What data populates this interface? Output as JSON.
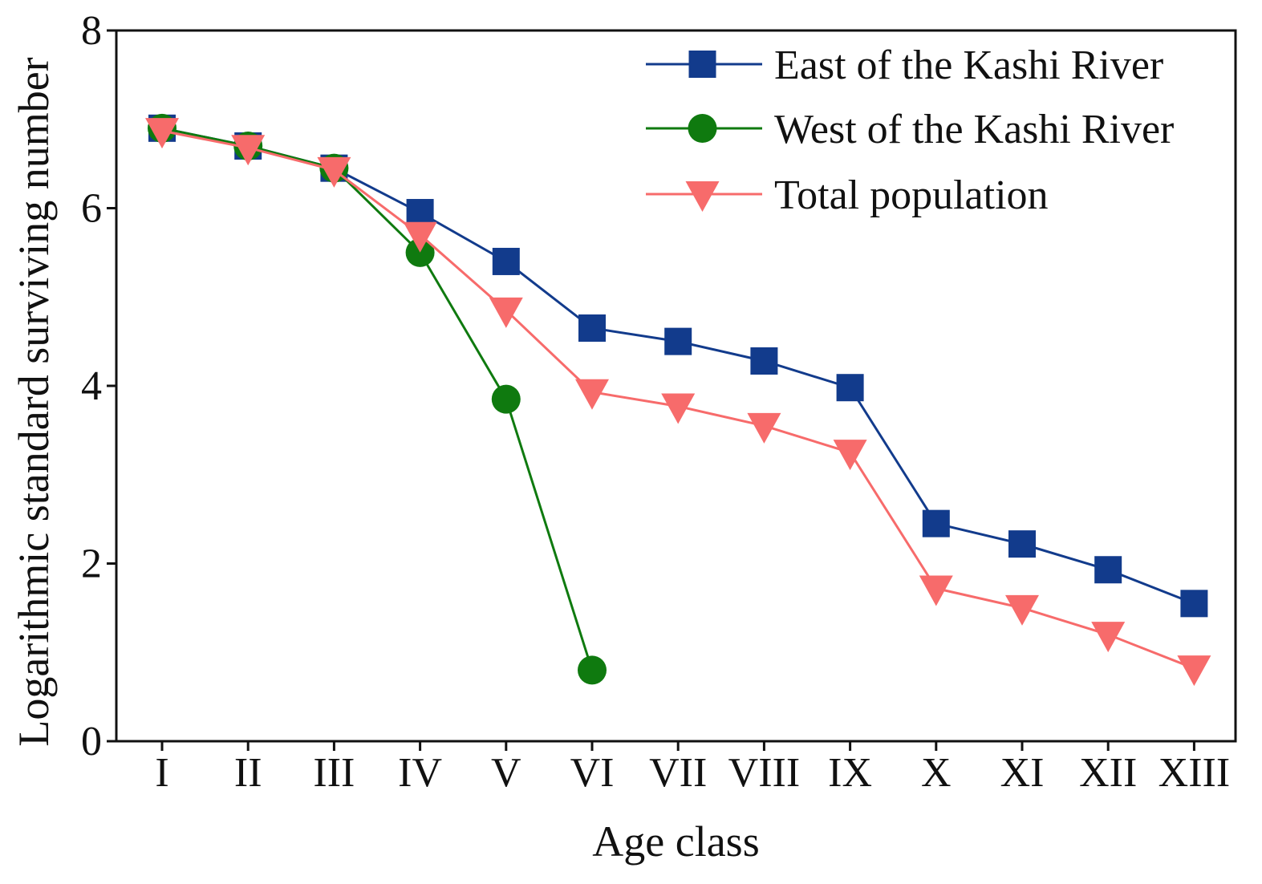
{
  "chart_data": {
    "type": "line",
    "title": "",
    "xlabel": "Age class",
    "ylabel": "Logarithmic standard surviving number",
    "categories": [
      "I",
      "II",
      "III",
      "IV",
      "V",
      "VI",
      "VII",
      "VIII",
      "IX",
      "X",
      "XI",
      "XII",
      "XIII"
    ],
    "ylim": [
      0,
      8
    ],
    "yticks": [
      0,
      2,
      4,
      6,
      8
    ],
    "grid": false,
    "legend_position": "top-right",
    "series": [
      {
        "name": "East of the Kashi River",
        "marker": "square",
        "color": "#123b8c",
        "values": [
          6.9,
          6.7,
          6.45,
          5.95,
          5.4,
          4.65,
          4.5,
          4.28,
          3.98,
          2.45,
          2.22,
          1.93,
          1.55
        ]
      },
      {
        "name": "West of the Kashi River",
        "marker": "circle",
        "color": "#0f7a0f",
        "values": [
          6.9,
          6.7,
          6.45,
          5.5,
          3.85,
          0.8,
          null,
          null,
          null,
          null,
          null,
          null,
          null
        ]
      },
      {
        "name": "Total population",
        "marker": "triangle-down",
        "color": "#f76b6b",
        "values": [
          6.87,
          6.68,
          6.43,
          5.7,
          4.85,
          3.93,
          3.77,
          3.55,
          3.25,
          1.72,
          1.5,
          1.2,
          0.82
        ]
      }
    ]
  }
}
